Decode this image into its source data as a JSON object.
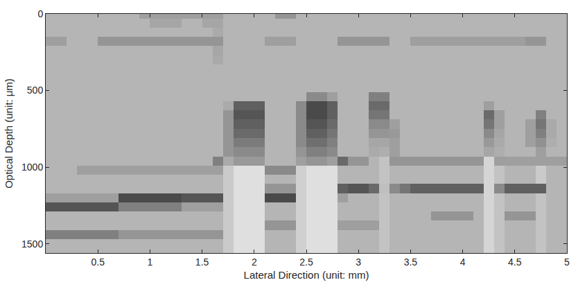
{
  "chart_data": {
    "type": "heatmap",
    "x_label": "Lateral Direction (unit: mm)",
    "y_label": "Optical Depth (unit: μm)",
    "xlim": [
      0,
      5
    ],
    "ylim": [
      1560,
      0
    ],
    "xticks": [
      0.5,
      1,
      1.5,
      2,
      2.5,
      3,
      3.5,
      4,
      4.5,
      5
    ],
    "yticks": [
      0,
      500,
      1000,
      1500
    ],
    "zlim": [
      0,
      120
    ],
    "colors": [
      "#ffffff",
      "#000000"
    ],
    "grid": false,
    "x": [
      0.05,
      0.15,
      0.25,
      0.35,
      0.45,
      0.55,
      0.65,
      0.75,
      0.85,
      0.95,
      1.05,
      1.15,
      1.25,
      1.35,
      1.45,
      1.55,
      1.65,
      1.75,
      1.85,
      1.95,
      2.05,
      2.15,
      2.25,
      2.35,
      2.45,
      2.55,
      2.65,
      2.75,
      2.85,
      2.95,
      3.05,
      3.15,
      3.25,
      3.35,
      3.45,
      3.55,
      3.65,
      3.75,
      3.85,
      3.95,
      4.05,
      4.15,
      4.25,
      4.35,
      4.45,
      4.55,
      4.65,
      4.75,
      4.85,
      4.95
    ],
    "y": [
      0,
      60,
      120,
      180,
      240,
      300,
      360,
      420,
      480,
      540,
      600,
      660,
      720,
      780,
      840,
      900,
      960,
      1020,
      1080,
      1140,
      1200,
      1260,
      1320,
      1380,
      1440,
      1500,
      1560
    ],
    "z": [
      [
        35,
        35,
        35,
        35,
        35,
        35,
        35,
        35,
        35,
        45,
        45,
        45,
        45,
        45,
        45,
        45,
        45,
        35,
        35,
        35,
        35,
        35,
        50,
        50,
        35,
        35,
        35,
        35,
        35,
        35,
        35,
        35,
        35,
        35,
        35,
        35,
        35,
        35,
        35,
        35,
        35,
        35,
        35,
        35,
        35,
        35,
        35,
        35,
        35,
        35
      ],
      [
        35,
        35,
        35,
        35,
        35,
        35,
        35,
        35,
        35,
        35,
        42,
        42,
        42,
        35,
        35,
        42,
        42,
        35,
        35,
        35,
        35,
        35,
        35,
        35,
        35,
        35,
        35,
        35,
        35,
        35,
        35,
        35,
        35,
        35,
        35,
        35,
        35,
        35,
        35,
        35,
        35,
        35,
        35,
        35,
        35,
        35,
        35,
        35,
        35,
        35
      ],
      [
        35,
        35,
        35,
        35,
        35,
        35,
        35,
        35,
        35,
        35,
        35,
        35,
        35,
        35,
        35,
        35,
        40,
        35,
        35,
        35,
        35,
        35,
        35,
        35,
        35,
        35,
        35,
        35,
        35,
        35,
        35,
        35,
        35,
        35,
        35,
        35,
        35,
        35,
        35,
        35,
        35,
        35,
        35,
        35,
        35,
        35,
        35,
        35,
        35,
        35
      ],
      [
        45,
        45,
        35,
        35,
        35,
        50,
        50,
        50,
        50,
        50,
        50,
        50,
        50,
        50,
        50,
        50,
        50,
        35,
        35,
        35,
        35,
        45,
        45,
        45,
        35,
        35,
        35,
        35,
        50,
        50,
        50,
        50,
        50,
        35,
        35,
        45,
        45,
        45,
        45,
        45,
        45,
        45,
        45,
        45,
        45,
        45,
        50,
        50,
        35,
        35
      ],
      [
        35,
        35,
        35,
        35,
        35,
        35,
        35,
        35,
        35,
        35,
        35,
        35,
        35,
        35,
        35,
        35,
        42,
        35,
        35,
        35,
        35,
        35,
        35,
        35,
        35,
        35,
        35,
        35,
        35,
        35,
        35,
        35,
        35,
        35,
        35,
        35,
        35,
        35,
        35,
        35,
        35,
        35,
        35,
        35,
        35,
        35,
        35,
        35,
        35,
        35
      ],
      [
        35,
        35,
        35,
        35,
        35,
        35,
        35,
        35,
        35,
        35,
        35,
        35,
        35,
        35,
        35,
        35,
        40,
        35,
        35,
        35,
        35,
        35,
        35,
        35,
        35,
        35,
        35,
        35,
        35,
        35,
        35,
        35,
        35,
        35,
        35,
        35,
        35,
        35,
        35,
        35,
        35,
        35,
        35,
        35,
        35,
        35,
        35,
        35,
        35,
        35
      ],
      [
        35,
        35,
        35,
        35,
        35,
        35,
        35,
        35,
        35,
        35,
        35,
        35,
        35,
        35,
        35,
        35,
        35,
        35,
        35,
        35,
        35,
        35,
        35,
        35,
        35,
        35,
        35,
        35,
        35,
        35,
        35,
        35,
        35,
        35,
        35,
        35,
        35,
        35,
        35,
        35,
        35,
        35,
        35,
        35,
        35,
        35,
        35,
        35,
        35,
        35
      ],
      [
        35,
        35,
        35,
        35,
        35,
        35,
        35,
        35,
        35,
        35,
        35,
        35,
        35,
        35,
        35,
        35,
        35,
        35,
        35,
        35,
        35,
        35,
        35,
        35,
        35,
        35,
        35,
        35,
        35,
        35,
        35,
        35,
        35,
        35,
        35,
        35,
        35,
        35,
        35,
        35,
        35,
        35,
        35,
        35,
        35,
        35,
        35,
        35,
        35,
        35
      ],
      [
        35,
        35,
        35,
        35,
        35,
        35,
        35,
        35,
        35,
        35,
        35,
        35,
        35,
        35,
        35,
        35,
        35,
        35,
        35,
        35,
        35,
        35,
        35,
        35,
        35,
        35,
        35,
        35,
        35,
        35,
        35,
        35,
        35,
        35,
        35,
        35,
        35,
        35,
        35,
        35,
        35,
        35,
        35,
        35,
        35,
        35,
        35,
        35,
        35,
        35
      ],
      [
        35,
        35,
        35,
        35,
        35,
        35,
        35,
        35,
        35,
        35,
        35,
        35,
        35,
        35,
        35,
        35,
        35,
        35,
        35,
        35,
        35,
        35,
        35,
        35,
        35,
        55,
        55,
        45,
        35,
        35,
        35,
        60,
        60,
        35,
        35,
        35,
        35,
        35,
        35,
        35,
        35,
        35,
        35,
        35,
        35,
        35,
        35,
        35,
        35,
        35
      ],
      [
        35,
        35,
        35,
        35,
        35,
        35,
        35,
        35,
        35,
        35,
        35,
        35,
        35,
        35,
        35,
        35,
        35,
        40,
        75,
        75,
        75,
        35,
        35,
        35,
        55,
        85,
        85,
        75,
        35,
        35,
        35,
        70,
        70,
        35,
        35,
        35,
        35,
        35,
        35,
        35,
        35,
        35,
        45,
        35,
        35,
        35,
        35,
        35,
        35,
        35
      ],
      [
        35,
        35,
        35,
        35,
        35,
        35,
        35,
        35,
        35,
        35,
        35,
        35,
        35,
        35,
        35,
        35,
        35,
        50,
        80,
        80,
        80,
        35,
        35,
        35,
        55,
        85,
        85,
        75,
        35,
        35,
        35,
        65,
        65,
        35,
        35,
        35,
        35,
        35,
        35,
        35,
        35,
        35,
        70,
        45,
        35,
        35,
        35,
        60,
        35,
        35
      ],
      [
        35,
        35,
        35,
        35,
        35,
        35,
        35,
        35,
        35,
        35,
        35,
        35,
        35,
        35,
        35,
        35,
        35,
        50,
        75,
        75,
        75,
        35,
        35,
        35,
        55,
        80,
        80,
        70,
        35,
        35,
        35,
        55,
        55,
        45,
        35,
        35,
        35,
        35,
        35,
        35,
        35,
        35,
        65,
        45,
        35,
        35,
        45,
        65,
        40,
        35
      ],
      [
        35,
        35,
        35,
        35,
        35,
        35,
        35,
        35,
        35,
        35,
        35,
        35,
        35,
        35,
        35,
        35,
        35,
        50,
        70,
        70,
        70,
        35,
        35,
        35,
        55,
        75,
        75,
        65,
        35,
        35,
        35,
        50,
        50,
        48,
        35,
        35,
        35,
        35,
        35,
        35,
        35,
        35,
        55,
        42,
        35,
        35,
        45,
        60,
        40,
        35
      ],
      [
        35,
        35,
        35,
        35,
        35,
        35,
        35,
        35,
        35,
        35,
        35,
        35,
        35,
        35,
        35,
        35,
        35,
        50,
        62,
        62,
        62,
        35,
        35,
        35,
        55,
        68,
        68,
        60,
        35,
        35,
        35,
        42,
        42,
        45,
        35,
        35,
        35,
        35,
        35,
        35,
        35,
        35,
        48,
        40,
        35,
        35,
        45,
        52,
        38,
        35
      ],
      [
        35,
        35,
        35,
        35,
        35,
        35,
        35,
        35,
        35,
        35,
        35,
        35,
        35,
        35,
        35,
        35,
        35,
        50,
        55,
        55,
        55,
        35,
        35,
        35,
        50,
        60,
        60,
        55,
        35,
        35,
        35,
        40,
        38,
        45,
        35,
        35,
        35,
        35,
        35,
        35,
        35,
        35,
        42,
        38,
        35,
        35,
        35,
        45,
        35,
        35
      ],
      [
        35,
        35,
        35,
        35,
        35,
        35,
        35,
        35,
        35,
        35,
        35,
        35,
        35,
        35,
        35,
        35,
        60,
        40,
        48,
        48,
        48,
        35,
        35,
        35,
        45,
        50,
        50,
        45,
        70,
        50,
        50,
        35,
        28,
        50,
        50,
        50,
        50,
        50,
        50,
        50,
        50,
        50,
        20,
        45,
        45,
        45,
        45,
        45,
        45,
        45
      ],
      [
        35,
        35,
        35,
        45,
        45,
        45,
        45,
        45,
        45,
        45,
        45,
        45,
        45,
        45,
        45,
        45,
        45,
        25,
        15,
        15,
        15,
        55,
        55,
        55,
        22,
        15,
        15,
        15,
        35,
        35,
        35,
        35,
        28,
        35,
        35,
        35,
        35,
        35,
        35,
        35,
        35,
        35,
        20,
        28,
        35,
        35,
        35,
        25,
        35,
        35
      ],
      [
        35,
        35,
        35,
        35,
        35,
        35,
        35,
        35,
        35,
        35,
        35,
        35,
        35,
        35,
        35,
        35,
        35,
        25,
        15,
        15,
        15,
        35,
        35,
        35,
        22,
        15,
        15,
        15,
        35,
        35,
        35,
        35,
        28,
        35,
        35,
        35,
        35,
        35,
        35,
        35,
        35,
        35,
        20,
        28,
        35,
        35,
        35,
        25,
        35,
        35
      ],
      [
        35,
        35,
        35,
        35,
        35,
        35,
        35,
        35,
        35,
        35,
        35,
        35,
        35,
        35,
        35,
        35,
        35,
        25,
        15,
        15,
        15,
        50,
        50,
        50,
        22,
        15,
        15,
        15,
        75,
        80,
        80,
        70,
        30,
        55,
        65,
        75,
        75,
        75,
        75,
        75,
        75,
        75,
        20,
        55,
        75,
        75,
        75,
        75,
        35,
        35
      ],
      [
        45,
        45,
        45,
        45,
        45,
        45,
        45,
        85,
        85,
        85,
        85,
        85,
        85,
        80,
        80,
        80,
        80,
        25,
        15,
        15,
        15,
        85,
        85,
        85,
        22,
        15,
        15,
        15,
        45,
        35,
        35,
        35,
        28,
        35,
        35,
        35,
        35,
        35,
        35,
        35,
        35,
        35,
        20,
        28,
        35,
        35,
        35,
        28,
        35,
        35
      ],
      [
        80,
        80,
        80,
        80,
        80,
        80,
        80,
        60,
        60,
        60,
        60,
        60,
        60,
        45,
        45,
        45,
        45,
        25,
        15,
        15,
        15,
        35,
        35,
        35,
        22,
        15,
        15,
        15,
        35,
        35,
        35,
        35,
        28,
        35,
        35,
        35,
        35,
        35,
        35,
        35,
        35,
        35,
        20,
        28,
        35,
        35,
        35,
        28,
        35,
        35
      ],
      [
        35,
        35,
        35,
        35,
        35,
        35,
        35,
        35,
        35,
        35,
        35,
        35,
        35,
        35,
        35,
        35,
        35,
        25,
        15,
        15,
        15,
        35,
        35,
        35,
        22,
        15,
        15,
        15,
        35,
        35,
        35,
        35,
        28,
        35,
        35,
        35,
        35,
        50,
        50,
        50,
        50,
        35,
        20,
        28,
        50,
        50,
        50,
        28,
        35,
        35
      ],
      [
        35,
        35,
        35,
        35,
        35,
        35,
        35,
        35,
        35,
        35,
        35,
        35,
        35,
        35,
        35,
        35,
        35,
        25,
        15,
        15,
        15,
        50,
        50,
        50,
        22,
        15,
        15,
        15,
        45,
        45,
        45,
        45,
        28,
        35,
        35,
        35,
        35,
        35,
        35,
        35,
        35,
        35,
        20,
        28,
        35,
        35,
        35,
        28,
        35,
        35
      ],
      [
        60,
        60,
        60,
        60,
        60,
        60,
        60,
        50,
        50,
        50,
        50,
        50,
        50,
        50,
        50,
        50,
        50,
        25,
        15,
        15,
        15,
        35,
        35,
        35,
        22,
        15,
        15,
        15,
        35,
        35,
        35,
        35,
        28,
        35,
        35,
        35,
        35,
        35,
        35,
        35,
        35,
        35,
        20,
        28,
        35,
        35,
        35,
        28,
        35,
        35
      ],
      [
        35,
        35,
        35,
        35,
        35,
        35,
        35,
        35,
        35,
        35,
        35,
        35,
        35,
        35,
        35,
        35,
        35,
        25,
        15,
        15,
        15,
        35,
        35,
        35,
        22,
        15,
        15,
        15,
        35,
        35,
        35,
        35,
        28,
        35,
        35,
        35,
        35,
        35,
        35,
        35,
        35,
        35,
        20,
        28,
        35,
        35,
        35,
        28,
        35,
        35
      ],
      [
        35,
        35,
        35,
        35,
        35,
        35,
        35,
        35,
        35,
        35,
        35,
        35,
        35,
        35,
        35,
        35,
        35,
        25,
        15,
        15,
        15,
        35,
        35,
        35,
        22,
        15,
        15,
        15,
        35,
        35,
        35,
        35,
        28,
        35,
        35,
        35,
        35,
        35,
        35,
        35,
        35,
        35,
        20,
        28,
        35,
        35,
        35,
        28,
        35,
        35
      ]
    ]
  }
}
